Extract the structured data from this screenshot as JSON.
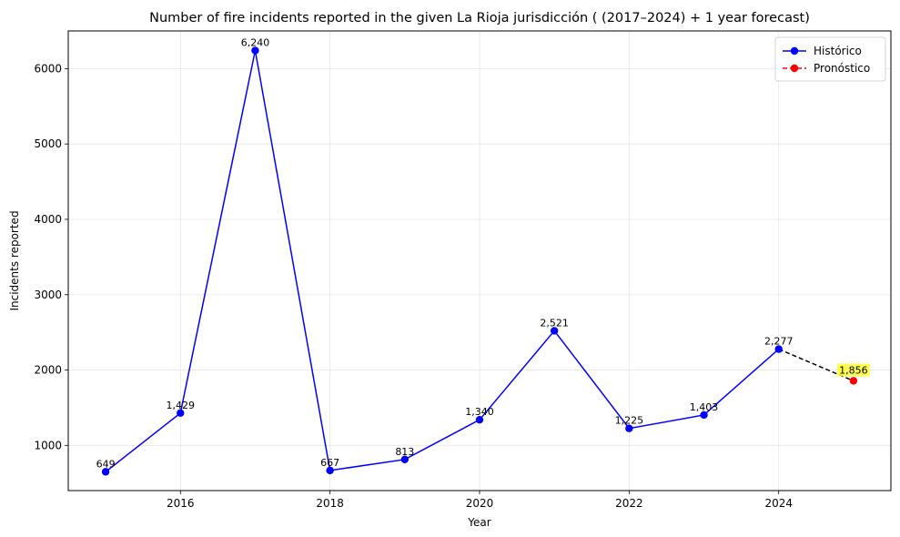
{
  "chart_data": {
    "type": "line",
    "title": "Number of fire incidents reported in the given La Rioja jurisdicción  ( (2017–2024)  + 1 year forecast)",
    "xlabel": "Year",
    "ylabel": "Incidents reported",
    "xlim": [
      2014.5,
      2025.5
    ],
    "ylim": [
      400,
      6500
    ],
    "x_ticks": [
      2016,
      2018,
      2020,
      2022,
      2024
    ],
    "y_ticks": [
      1000,
      2000,
      3000,
      4000,
      5000,
      6000
    ],
    "grid": true,
    "legend_position": "top-right",
    "series": [
      {
        "name": "Histórico",
        "color": "#0000ff",
        "line_style": "solid",
        "marker": "circle",
        "x": [
          2015,
          2016,
          2017,
          2018,
          2019,
          2020,
          2021,
          2022,
          2023,
          2024
        ],
        "y": [
          649,
          1429,
          6240,
          667,
          813,
          1340,
          2521,
          1225,
          1403,
          2277
        ],
        "labels": [
          "649",
          "1,429",
          "6,240",
          "667",
          "813",
          "1,340",
          "2,521",
          "1,225",
          "1,403",
          "2,277"
        ]
      },
      {
        "name": "Pronóstico",
        "color": "#ff0000",
        "line_style": "dashed",
        "marker": "circle",
        "x": [
          2025
        ],
        "y": [
          1856
        ],
        "labels": [
          "1,856"
        ],
        "label_highlight": "#ffff33"
      }
    ],
    "connector_color": "#000000"
  }
}
